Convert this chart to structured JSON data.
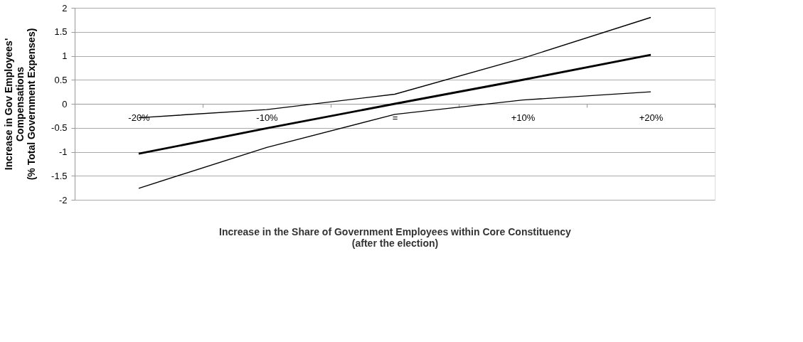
{
  "chart_data": {
    "type": "line",
    "xlabel": "Increase in the Share of Government Employees within Core Constituency\n(after the election)",
    "ylabel": "Increase in Gov Employees'\nCompensations\n(% Total Government Expenses)",
    "categories": [
      "-20%",
      "-10%",
      "=",
      "+10%",
      "+20%"
    ],
    "series": [
      {
        "color": "#000000",
        "values": [
          -1.04,
          -0.51,
          0,
          0.5,
          1.02
        ]
      },
      {
        "color": "#000000",
        "values": [
          -0.29,
          -0.12,
          0.2,
          0.95,
          1.8
        ]
      },
      {
        "color": "#000000",
        "values": [
          -1.76,
          -0.91,
          -0.22,
          0.08,
          0.25
        ]
      }
    ],
    "ylim": [
      -2,
      2
    ],
    "yticks": [
      -2,
      -1.5,
      -1,
      -0.5,
      0,
      0.5,
      1,
      1.5,
      2
    ],
    "grid": "y",
    "legend": false,
    "marker": "none",
    "line_style": "solid"
  }
}
